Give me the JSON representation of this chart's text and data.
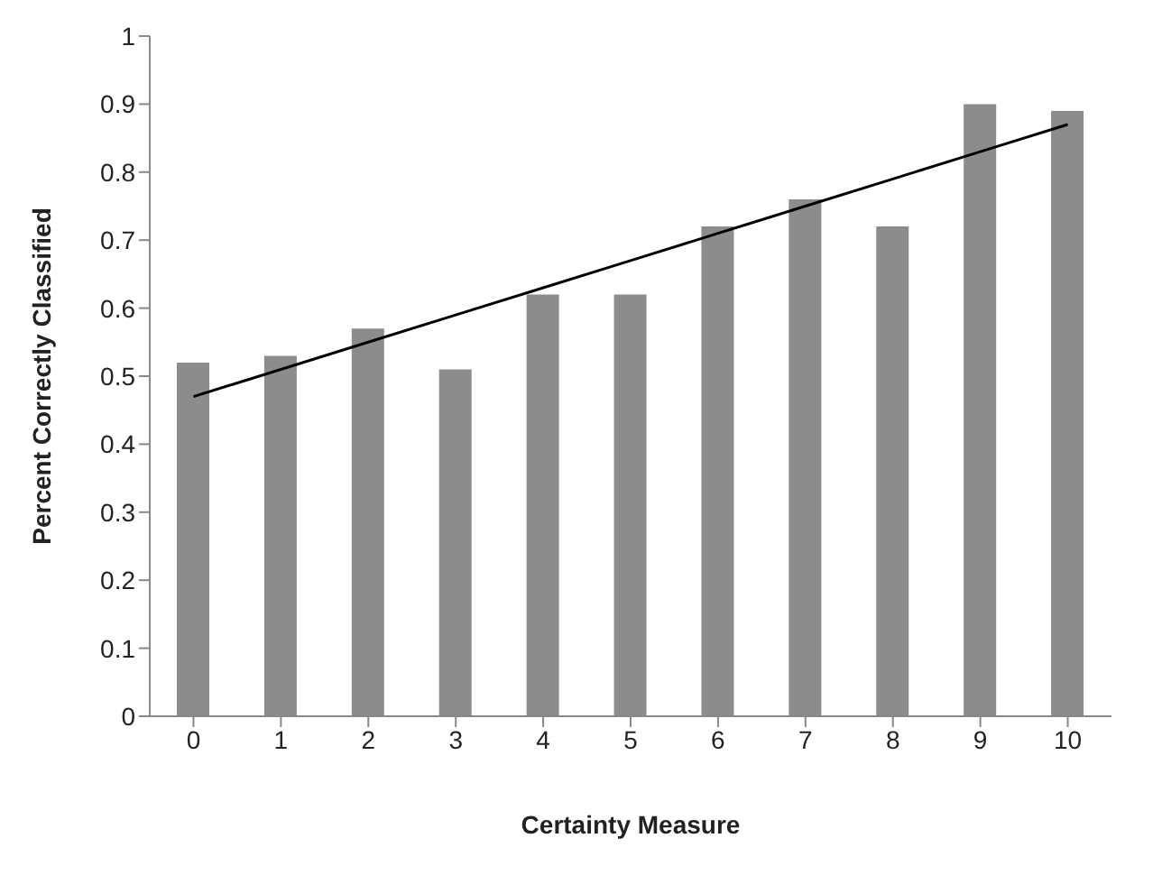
{
  "chart_data": {
    "type": "bar",
    "xlabel": "Certainty Measure",
    "ylabel": "Percent Correctly Classified",
    "categories": [
      "0",
      "1",
      "2",
      "3",
      "4",
      "5",
      "6",
      "7",
      "8",
      "9",
      "10"
    ],
    "series": [
      {
        "color": "#8c8c8c",
        "values": [
          0.52,
          0.53,
          0.57,
          0.51,
          0.62,
          0.62,
          0.72,
          0.76,
          0.72,
          0.9,
          0.89
        ]
      },
      {
        "type": "line",
        "color": "#000000",
        "marker": "none",
        "values": [
          0.47,
          0.51,
          0.55,
          0.59,
          0.63,
          0.67,
          0.71,
          0.75,
          0.79,
          0.83,
          0.87
        ]
      }
    ],
    "ylim": [
      0,
      1
    ],
    "yticks": [
      0,
      0.1,
      0.2,
      0.3,
      0.4,
      0.5,
      0.6,
      0.7,
      0.8,
      0.9,
      1
    ],
    "grid": false,
    "legend": false
  }
}
